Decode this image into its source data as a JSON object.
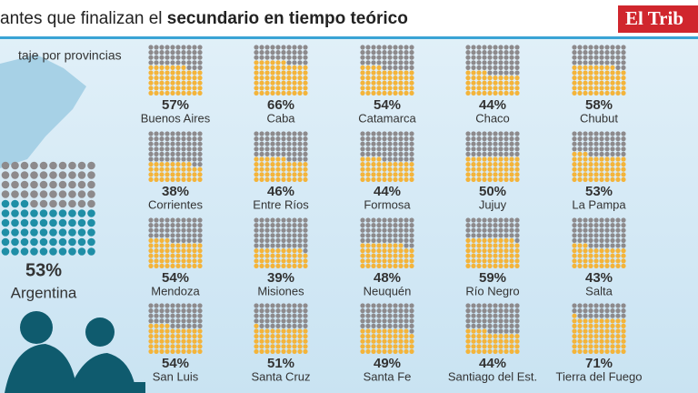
{
  "chart_data": {
    "type": "waffle",
    "title": "antes que finalizan el",
    "title_bold": "secundario en tiempo teórico",
    "subtitle": "taje por provincias",
    "brand": "El Trib",
    "categories": [
      "Buenos Aires",
      "Caba",
      "Catamarca",
      "Chaco",
      "Chubut",
      "Corrientes",
      "Entre Ríos",
      "Formosa",
      "Jujuy",
      "La Pampa",
      "Mendoza",
      "Misiones",
      "Neuquén",
      "Río Negro",
      "Salta",
      "San Luis",
      "Santa Cruz",
      "Santa Fe",
      "Santiago del Est.",
      "Tierra del Fuego"
    ],
    "values": [
      57,
      66,
      54,
      44,
      58,
      38,
      46,
      44,
      50,
      53,
      54,
      39,
      48,
      59,
      43,
      54,
      51,
      49,
      44,
      71
    ],
    "value_labels": [
      "57%",
      "66%",
      "54%",
      "44%",
      "58%",
      "38%",
      "46%",
      "44%",
      "50%",
      "53%",
      "54%",
      "39%",
      "48%",
      "59%",
      "43%",
      "54%",
      "51%",
      "49%",
      "44%",
      "71%"
    ],
    "color": "#f4b43a",
    "rest_color": "#8d8a8c",
    "national": {
      "name": "Argentina",
      "value": 53,
      "value_label": "53%",
      "color": "#1f8ea6"
    }
  }
}
